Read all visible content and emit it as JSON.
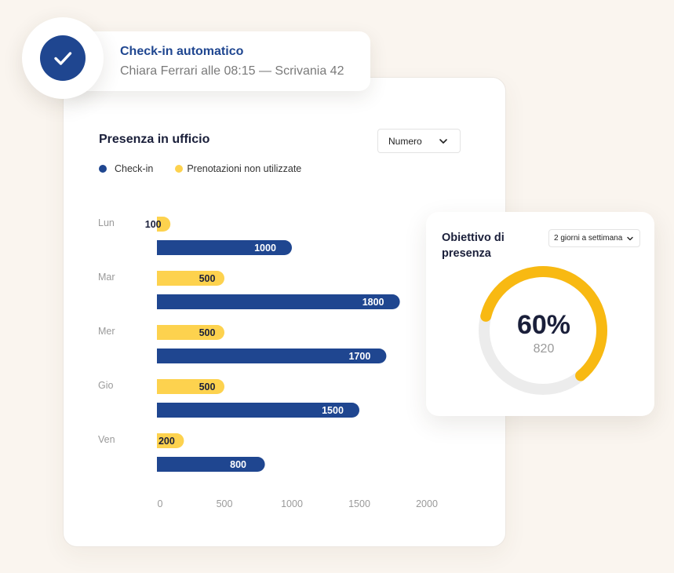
{
  "toast": {
    "title": "Check-in automatico",
    "subtitle": "Chiara Ferrari alle 08:15 — Scrivania 42",
    "icon": "check-icon"
  },
  "presence_chart": {
    "title": "Presenza in ufficio",
    "metric_select": "Numero",
    "legend": [
      {
        "label": "Check-in",
        "color": "#1f4690"
      },
      {
        "label": "Prenotazioni non utilizzate",
        "color": "#fdd24e"
      }
    ]
  },
  "goal": {
    "title": "Obiettivo di presenza",
    "period_select": "2 giorni a settimana",
    "percent_label": "60%",
    "count_label": "820",
    "progress": 0.6
  },
  "colors": {
    "checkin": "#1f4690",
    "unused": "#fdd24e",
    "gauge": "#f8b912",
    "gauge_track": "#ececec"
  },
  "chart_data": {
    "type": "bar",
    "orientation": "horizontal",
    "categories": [
      "Lun",
      "Mar",
      "Mer",
      "Gio",
      "Ven"
    ],
    "series": [
      {
        "name": "Prenotazioni non utilizzate",
        "values": [
          100,
          500,
          500,
          500,
          200
        ]
      },
      {
        "name": "Check-in",
        "values": [
          1000,
          1800,
          1700,
          1500,
          800
        ]
      }
    ],
    "x_ticks": [
      "0",
      "500",
      "1000",
      "1500",
      "2000"
    ],
    "xlim": [
      0,
      2000
    ],
    "title": "Presenza in ufficio",
    "legend_position": "top-left",
    "grid": false
  }
}
